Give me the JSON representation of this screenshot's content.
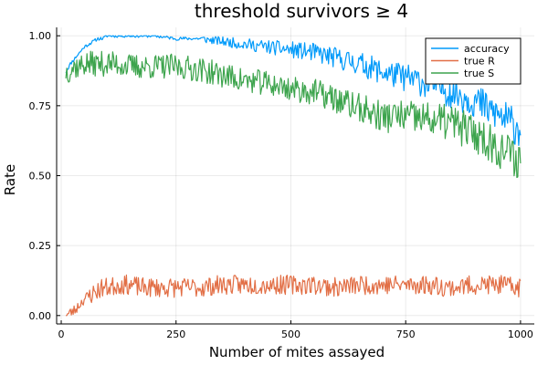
{
  "chart_data": {
    "type": "line",
    "title": "threshold survivors ≥ 4",
    "xlabel": "Number of mites assayed",
    "ylabel": "Rate",
    "xlim": [
      -10,
      1030
    ],
    "ylim": [
      -0.03,
      1.03
    ],
    "xticks": [
      0,
      250,
      500,
      750,
      1000
    ],
    "xtick_labels": [
      "0",
      "250",
      "500",
      "750",
      "1000"
    ],
    "yticks": [
      0.0,
      0.25,
      0.5,
      0.75,
      1.0
    ],
    "ytick_labels": [
      "0.00",
      "0.25",
      "0.50",
      "0.75",
      "1.00"
    ],
    "grid": true,
    "legend_position": "top-right",
    "series": [
      {
        "name": "accuracy",
        "color": "#009AFA",
        "x": [
          10,
          20,
          30,
          40,
          50,
          60,
          70,
          80,
          90,
          100,
          125,
          150,
          175,
          200,
          250,
          300,
          350,
          400,
          450,
          500,
          550,
          600,
          650,
          700,
          750,
          800,
          850,
          900,
          925,
          950,
          975,
          1000
        ],
        "y": [
          0.87,
          0.9,
          0.92,
          0.94,
          0.96,
          0.97,
          0.98,
          0.99,
          0.99,
          1.0,
          1.0,
          1.0,
          1.0,
          1.0,
          0.99,
          0.99,
          0.98,
          0.97,
          0.96,
          0.95,
          0.94,
          0.92,
          0.9,
          0.87,
          0.85,
          0.83,
          0.8,
          0.77,
          0.74,
          0.72,
          0.69,
          0.67
        ]
      },
      {
        "name": "true R",
        "color": "#E26F46",
        "x": [
          10,
          20,
          30,
          40,
          50,
          60,
          70,
          80,
          90,
          100,
          125,
          150,
          175,
          200,
          250,
          300,
          350,
          400,
          450,
          500,
          550,
          600,
          650,
          700,
          750,
          800,
          850,
          900,
          950,
          1000
        ],
        "y": [
          0.0,
          0.01,
          0.02,
          0.04,
          0.06,
          0.07,
          0.08,
          0.09,
          0.1,
          0.1,
          0.11,
          0.11,
          0.1,
          0.1,
          0.1,
          0.1,
          0.11,
          0.11,
          0.11,
          0.11,
          0.11,
          0.1,
          0.11,
          0.11,
          0.11,
          0.11,
          0.1,
          0.11,
          0.11,
          0.1
        ]
      },
      {
        "name": "true S",
        "color": "#3DA44D",
        "x": [
          10,
          20,
          30,
          40,
          50,
          60,
          70,
          80,
          90,
          100,
          125,
          150,
          175,
          200,
          250,
          300,
          350,
          400,
          450,
          500,
          550,
          600,
          650,
          700,
          750,
          800,
          850,
          900,
          925,
          950,
          975,
          1000
        ],
        "y": [
          0.87,
          0.88,
          0.89,
          0.89,
          0.9,
          0.9,
          0.9,
          0.9,
          0.9,
          0.9,
          0.9,
          0.89,
          0.89,
          0.89,
          0.89,
          0.88,
          0.86,
          0.84,
          0.83,
          0.81,
          0.8,
          0.77,
          0.74,
          0.71,
          0.71,
          0.7,
          0.69,
          0.65,
          0.63,
          0.6,
          0.58,
          0.55
        ]
      }
    ]
  }
}
